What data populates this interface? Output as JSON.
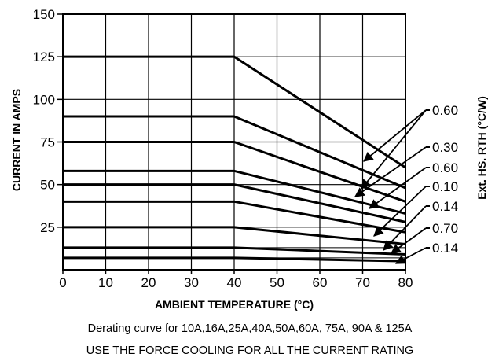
{
  "chart_data": {
    "type": "line",
    "xlabel": "AMBIENT TEMPERATURE (°C)",
    "ylabel": "CURRENT IN AMPS",
    "right_label": "Ext. HS. RTH (°C/W)",
    "x_ticks": [
      "0",
      "10",
      "20",
      "30",
      "40",
      "50",
      "60",
      "70",
      "80"
    ],
    "y_ticks": [
      "25",
      "50",
      "75",
      "100",
      "125",
      "150"
    ],
    "xlim": [
      0,
      80
    ],
    "ylim": [
      0,
      150
    ],
    "grid": true,
    "series": [
      {
        "x": [
          0,
          40,
          80
        ],
        "y": [
          125,
          125,
          60
        ]
      },
      {
        "x": [
          0,
          40,
          80
        ],
        "y": [
          90,
          90,
          48
        ]
      },
      {
        "x": [
          0,
          40,
          80
        ],
        "y": [
          75,
          75,
          40
        ]
      },
      {
        "x": [
          0,
          40,
          80
        ],
        "y": [
          58,
          58,
          33
        ]
      },
      {
        "x": [
          0,
          40,
          80
        ],
        "y": [
          50,
          50,
          28
        ]
      },
      {
        "x": [
          0,
          40,
          80
        ],
        "y": [
          40,
          40,
          22
        ]
      },
      {
        "x": [
          0,
          40,
          80
        ],
        "y": [
          25,
          25,
          15
        ]
      },
      {
        "x": [
          0,
          40,
          80
        ],
        "y": [
          13,
          13,
          9
        ]
      },
      {
        "x": [
          0,
          40,
          80
        ],
        "y": [
          7,
          7,
          5
        ]
      }
    ],
    "rth_labels": [
      "0.60",
      "0.30",
      "0.60",
      "0.10",
      "0.14",
      "0.70",
      "0.14"
    ],
    "caption_lines": [
      "Derating curve for 10A,16A,25A,40A,50A,60A, 75A, 90A & 125A",
      "USE THE FORCE COOLING FOR ALL THE CURRENT RATING"
    ]
  }
}
